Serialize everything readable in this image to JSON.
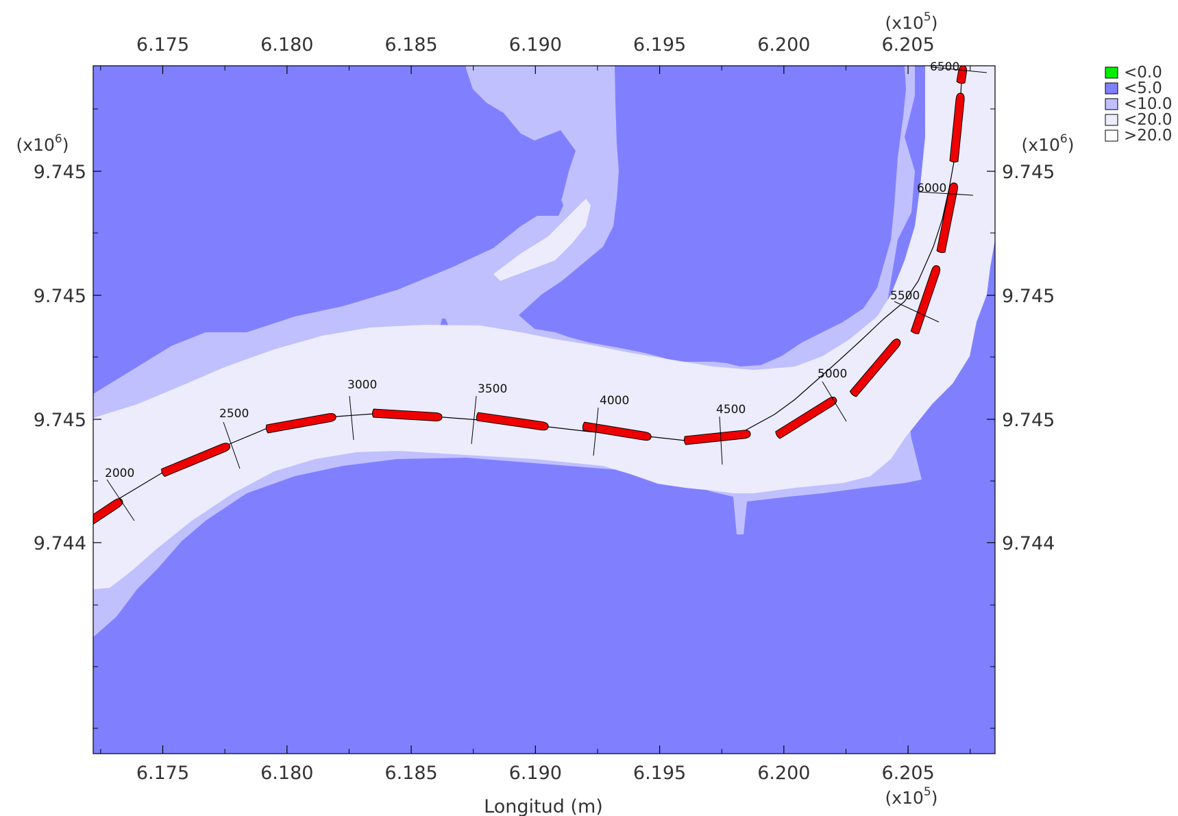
{
  "chart_data": {
    "type": "contour_map",
    "xlabel": "Longitud (m)",
    "x_multiplier": {
      "base": "(x10",
      "exp": "5",
      "close": ")"
    },
    "y_multiplier": {
      "base": "(x10",
      "exp": "6",
      "close": ")"
    },
    "x_ticks": [
      "6.175",
      "6.180",
      "6.185",
      "6.190",
      "6.195",
      "6.200",
      "6.205"
    ],
    "x_tick_values": [
      617500,
      618000,
      618500,
      619000,
      619500,
      620000,
      620500
    ],
    "y_tick_labels": [
      "9.745",
      "9.745",
      "9.745",
      "9.744"
    ],
    "xlim": [
      617220,
      620850
    ],
    "legend": [
      {
        "label": "<0.0",
        "color": "#00ee00"
      },
      {
        "label": "<5.0",
        "color": "#8080ff"
      },
      {
        "label": "<10.0",
        "color": "#c0c0ff"
      },
      {
        "label": "<20.0",
        "color": "#ececfc"
      },
      {
        "label": ">20.0",
        "color": "#ffffff"
      }
    ],
    "channel_chainage_labels": [
      "2000",
      "2500",
      "3000",
      "3500",
      "4000",
      "4500",
      "5000",
      "5500",
      "6000",
      "6500"
    ],
    "vessel_color": "#ee0000"
  }
}
